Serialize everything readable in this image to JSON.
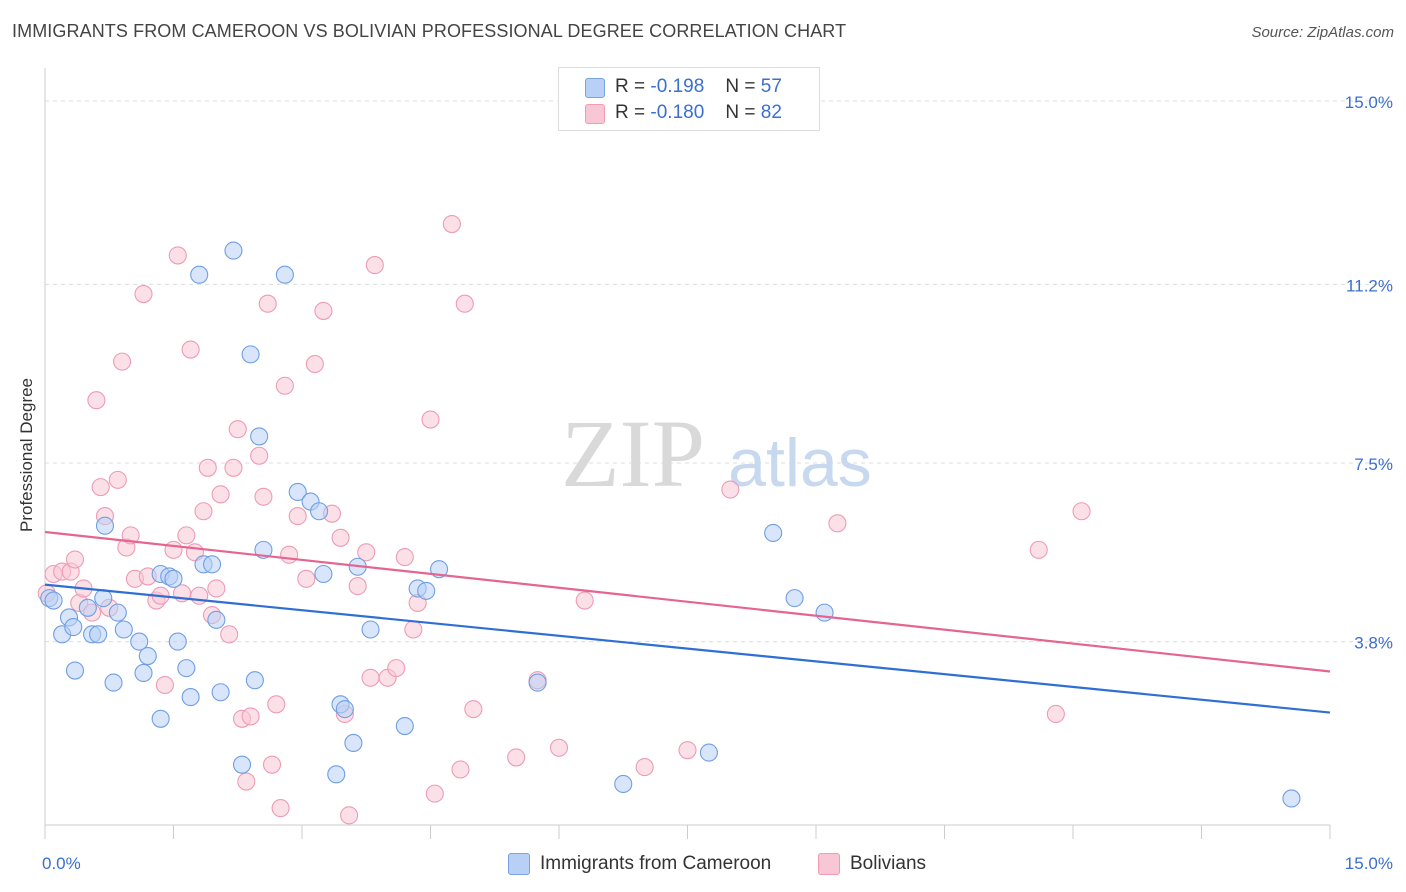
{
  "title": "IMMIGRANTS FROM CAMEROON VS BOLIVIAN PROFESSIONAL DEGREE CORRELATION CHART",
  "source": "Source: ZipAtlas.com",
  "watermark": {
    "zip": "ZIP",
    "atlas": "atlas"
  },
  "stats_legend": [
    {
      "r_label": "R =",
      "r_value": "-0.198",
      "n_label": "N =",
      "n_value": "57",
      "fill": "#b8d0f5",
      "stroke": "#7aa3e0"
    },
    {
      "r_label": "R =",
      "r_value": "-0.180",
      "n_label": "N =",
      "n_value": "82",
      "fill": "#f9c6d6",
      "stroke": "#ee9bb5"
    }
  ],
  "chart_data": {
    "type": "scatter",
    "title": "IMMIGRANTS FROM CAMEROON VS BOLIVIAN PROFESSIONAL DEGREE CORRELATION CHART",
    "xlabel": "",
    "ylabel": "Professional Degree",
    "xlim": [
      0,
      15
    ],
    "ylim": [
      0,
      15.6
    ],
    "x_tick_labels": [
      {
        "value": 0,
        "label": "0.0%"
      },
      {
        "value": 15,
        "label": "15.0%"
      }
    ],
    "y_tick_labels": [
      {
        "value": 3.8,
        "label": "3.8%"
      },
      {
        "value": 7.5,
        "label": "7.5%"
      },
      {
        "value": 11.2,
        "label": "11.2%"
      },
      {
        "value": 15.0,
        "label": "15.0%"
      }
    ],
    "grid": "horizontal dashed",
    "legend_position": "bottom-center",
    "series": [
      {
        "name": "Immigrants from Cameroon",
        "color": "#6f9fe3",
        "fill": "#b8d0f5",
        "line_color": "#2f6fd4",
        "trend": {
          "x": [
            0,
            15
          ],
          "y": [
            4.98,
            2.33
          ]
        },
        "points": [
          [
            0.05,
            4.7
          ],
          [
            0.1,
            4.65
          ],
          [
            0.2,
            3.95
          ],
          [
            0.28,
            4.3
          ],
          [
            0.33,
            4.1
          ],
          [
            0.35,
            3.2
          ],
          [
            0.5,
            4.5
          ],
          [
            0.55,
            3.95
          ],
          [
            0.62,
            3.95
          ],
          [
            0.68,
            4.7
          ],
          [
            0.7,
            6.2
          ],
          [
            0.8,
            2.95
          ],
          [
            0.85,
            4.4
          ],
          [
            0.92,
            4.05
          ],
          [
            1.1,
            3.8
          ],
          [
            1.15,
            3.15
          ],
          [
            1.2,
            3.5
          ],
          [
            1.35,
            5.2
          ],
          [
            1.35,
            2.2
          ],
          [
            1.45,
            5.15
          ],
          [
            1.5,
            5.1
          ],
          [
            1.55,
            3.8
          ],
          [
            1.65,
            3.25
          ],
          [
            1.7,
            2.65
          ],
          [
            1.8,
            11.4
          ],
          [
            1.85,
            5.4
          ],
          [
            1.95,
            5.4
          ],
          [
            2.0,
            4.25
          ],
          [
            2.05,
            2.75
          ],
          [
            2.2,
            11.9
          ],
          [
            2.3,
            1.25
          ],
          [
            2.4,
            9.75
          ],
          [
            2.45,
            3.0
          ],
          [
            2.5,
            8.05
          ],
          [
            2.55,
            5.7
          ],
          [
            2.8,
            11.4
          ],
          [
            2.95,
            6.9
          ],
          [
            3.1,
            6.7
          ],
          [
            3.2,
            6.5
          ],
          [
            3.25,
            5.2
          ],
          [
            3.4,
            1.05
          ],
          [
            3.45,
            2.5
          ],
          [
            3.5,
            2.4
          ],
          [
            3.6,
            1.7
          ],
          [
            3.65,
            5.35
          ],
          [
            3.8,
            4.05
          ],
          [
            4.2,
            2.05
          ],
          [
            4.35,
            4.9
          ],
          [
            4.45,
            4.85
          ],
          [
            4.6,
            5.3
          ],
          [
            5.75,
            2.95
          ],
          [
            6.75,
            0.85
          ],
          [
            7.75,
            1.5
          ],
          [
            8.5,
            6.05
          ],
          [
            8.75,
            4.7
          ],
          [
            9.1,
            4.4
          ],
          [
            14.55,
            0.55
          ]
        ]
      },
      {
        "name": "Bolivians",
        "color": "#ee9bb5",
        "fill": "#f9c6d6",
        "line_color": "#e46591",
        "trend": {
          "x": [
            0,
            15
          ],
          "y": [
            6.07,
            3.18
          ]
        },
        "points": [
          [
            0.02,
            4.8
          ],
          [
            0.1,
            5.2
          ],
          [
            0.2,
            5.25
          ],
          [
            0.3,
            5.25
          ],
          [
            0.35,
            5.5
          ],
          [
            0.4,
            4.6
          ],
          [
            0.45,
            4.9
          ],
          [
            0.55,
            4.4
          ],
          [
            0.6,
            8.8
          ],
          [
            0.65,
            7.0
          ],
          [
            0.7,
            6.4
          ],
          [
            0.75,
            4.5
          ],
          [
            0.85,
            7.15
          ],
          [
            0.9,
            9.6
          ],
          [
            0.95,
            5.75
          ],
          [
            1.0,
            6.0
          ],
          [
            1.05,
            5.1
          ],
          [
            1.15,
            11.0
          ],
          [
            1.2,
            5.15
          ],
          [
            1.3,
            4.65
          ],
          [
            1.35,
            4.75
          ],
          [
            1.4,
            2.9
          ],
          [
            1.5,
            5.7
          ],
          [
            1.55,
            11.8
          ],
          [
            1.6,
            4.8
          ],
          [
            1.65,
            6.0
          ],
          [
            1.7,
            9.85
          ],
          [
            1.75,
            5.65
          ],
          [
            1.8,
            4.75
          ],
          [
            1.85,
            6.5
          ],
          [
            1.9,
            7.4
          ],
          [
            1.95,
            4.35
          ],
          [
            2.0,
            4.9
          ],
          [
            2.05,
            6.85
          ],
          [
            2.15,
            3.95
          ],
          [
            2.2,
            7.4
          ],
          [
            2.25,
            8.2
          ],
          [
            2.3,
            2.2
          ],
          [
            2.35,
            0.9
          ],
          [
            2.4,
            2.25
          ],
          [
            2.5,
            7.65
          ],
          [
            2.55,
            6.8
          ],
          [
            2.6,
            10.8
          ],
          [
            2.65,
            1.25
          ],
          [
            2.7,
            2.5
          ],
          [
            2.75,
            0.35
          ],
          [
            2.8,
            9.1
          ],
          [
            2.85,
            5.6
          ],
          [
            2.95,
            6.4
          ],
          [
            3.05,
            5.1
          ],
          [
            3.15,
            9.55
          ],
          [
            3.25,
            10.65
          ],
          [
            3.35,
            6.45
          ],
          [
            3.45,
            5.95
          ],
          [
            3.5,
            2.3
          ],
          [
            3.55,
            0.2
          ],
          [
            3.65,
            4.95
          ],
          [
            3.75,
            5.65
          ],
          [
            3.8,
            3.05
          ],
          [
            3.85,
            11.6
          ],
          [
            4.0,
            3.05
          ],
          [
            4.1,
            3.25
          ],
          [
            4.2,
            5.55
          ],
          [
            4.3,
            4.05
          ],
          [
            4.35,
            4.6
          ],
          [
            4.5,
            8.4
          ],
          [
            4.55,
            0.65
          ],
          [
            4.75,
            12.45
          ],
          [
            4.85,
            1.15
          ],
          [
            4.9,
            10.8
          ],
          [
            5.0,
            2.4
          ],
          [
            5.5,
            1.4
          ],
          [
            5.75,
            3.0
          ],
          [
            6.0,
            1.6
          ],
          [
            6.3,
            4.65
          ],
          [
            7.0,
            1.2
          ],
          [
            7.5,
            1.55
          ],
          [
            8.0,
            6.95
          ],
          [
            9.25,
            6.25
          ],
          [
            11.6,
            5.7
          ],
          [
            11.8,
            2.3
          ],
          [
            12.1,
            6.5
          ]
        ]
      }
    ]
  }
}
